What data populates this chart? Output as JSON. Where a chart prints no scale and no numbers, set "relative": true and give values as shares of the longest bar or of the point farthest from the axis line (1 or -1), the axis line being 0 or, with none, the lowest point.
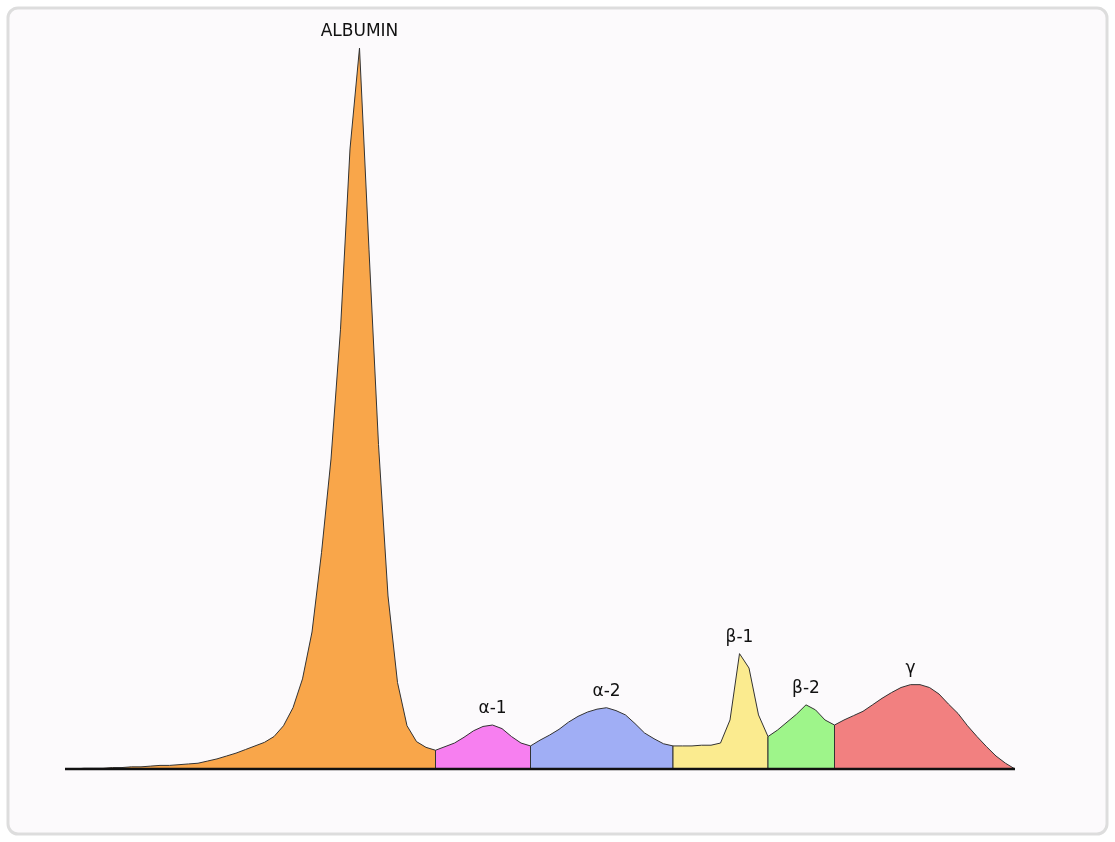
{
  "chart_data": {
    "type": "area",
    "relative": true,
    "categories": [
      null,
      null,
      null,
      null,
      null,
      null,
      null,
      null,
      null,
      null,
      null,
      null,
      null,
      null,
      null,
      null,
      null,
      null,
      null,
      null,
      null,
      null,
      null,
      null,
      null,
      null,
      null,
      null,
      null,
      null,
      null,
      null,
      null,
      null,
      null,
      null,
      null,
      null,
      null,
      null,
      null,
      null,
      null,
      null,
      null,
      null,
      null,
      null,
      null,
      null,
      null,
      null,
      null,
      null,
      null,
      null,
      null,
      null,
      null,
      null,
      null,
      null,
      null,
      null,
      null,
      null,
      null,
      null,
      null,
      null,
      null,
      null,
      null,
      null,
      null,
      null,
      null,
      null,
      null,
      null,
      null,
      null,
      null,
      null,
      null,
      null,
      null,
      null,
      null,
      null,
      null,
      null,
      null,
      null,
      null,
      null,
      null,
      null,
      null,
      null,
      null
    ],
    "series": [
      {
        "name": "ALBUMIN",
        "color": "#f9a64a",
        "values": [
          0,
          0,
          0.001,
          0.001,
          0.001,
          0.002,
          0.002,
          0.003,
          0.003,
          0.004,
          0.005,
          0.005,
          0.006,
          0.007,
          0.008,
          0.011,
          0.014,
          0.018,
          0.022,
          0.027,
          0.032,
          0.037,
          0.045,
          0.06,
          0.085,
          0.125,
          0.19,
          0.3,
          0.43,
          0.61,
          0.86,
          1,
          0.72,
          0.45,
          0.24,
          0.12,
          0.06,
          0.038,
          0.03,
          0.026,
          null,
          null,
          null,
          null,
          null,
          null,
          null,
          null,
          null,
          null,
          null,
          null,
          null,
          null,
          null,
          null,
          null,
          null,
          null,
          null,
          null,
          null,
          null,
          null,
          null,
          null,
          null,
          null,
          null,
          null,
          null,
          null,
          null,
          null,
          null,
          null,
          null,
          null,
          null,
          null,
          null,
          null,
          null,
          null,
          null,
          null,
          null,
          null,
          null,
          null,
          null,
          null,
          null,
          null,
          null,
          null,
          null,
          null,
          null,
          null,
          null
        ]
      },
      {
        "name": "α-1",
        "color": "#f77ff0",
        "values": [
          null,
          null,
          null,
          null,
          null,
          null,
          null,
          null,
          null,
          null,
          null,
          null,
          null,
          null,
          null,
          null,
          null,
          null,
          null,
          null,
          null,
          null,
          null,
          null,
          null,
          null,
          null,
          null,
          null,
          null,
          null,
          null,
          null,
          null,
          null,
          null,
          null,
          null,
          null,
          0.026,
          0.031,
          0.036,
          0.044,
          0.053,
          0.059,
          0.061,
          0.056,
          0.045,
          0.036,
          0.032,
          null,
          null,
          null,
          null,
          null,
          null,
          null,
          null,
          null,
          null,
          null,
          null,
          null,
          null,
          null,
          null,
          null,
          null,
          null,
          null,
          null,
          null,
          null,
          null,
          null,
          null,
          null,
          null,
          null,
          null,
          null,
          null,
          null,
          null,
          null,
          null,
          null,
          null,
          null,
          null,
          null,
          null,
          null,
          null,
          null,
          null,
          null,
          null,
          null,
          null,
          null
        ]
      },
      {
        "name": "α-2",
        "color": "#a0aef5",
        "values": [
          null,
          null,
          null,
          null,
          null,
          null,
          null,
          null,
          null,
          null,
          null,
          null,
          null,
          null,
          null,
          null,
          null,
          null,
          null,
          null,
          null,
          null,
          null,
          null,
          null,
          null,
          null,
          null,
          null,
          null,
          null,
          null,
          null,
          null,
          null,
          null,
          null,
          null,
          null,
          null,
          null,
          null,
          null,
          null,
          null,
          null,
          null,
          null,
          null,
          0.032,
          0.04,
          0.047,
          0.055,
          0.065,
          0.073,
          0.079,
          0.083,
          0.085,
          0.081,
          0.075,
          0.063,
          0.05,
          0.042,
          0.035,
          0.032,
          null,
          null,
          null,
          null,
          null,
          null,
          null,
          null,
          null,
          null,
          null,
          null,
          null,
          null,
          null,
          null,
          null,
          null,
          null,
          null,
          null,
          null,
          null,
          null,
          null,
          null,
          null,
          null,
          null,
          null,
          null,
          null,
          null,
          null,
          null,
          null
        ]
      },
      {
        "name": "β-1",
        "color": "#fbeb8f",
        "values": [
          null,
          null,
          null,
          null,
          null,
          null,
          null,
          null,
          null,
          null,
          null,
          null,
          null,
          null,
          null,
          null,
          null,
          null,
          null,
          null,
          null,
          null,
          null,
          null,
          null,
          null,
          null,
          null,
          null,
          null,
          null,
          null,
          null,
          null,
          null,
          null,
          null,
          null,
          null,
          null,
          null,
          null,
          null,
          null,
          null,
          null,
          null,
          null,
          null,
          null,
          null,
          null,
          null,
          null,
          null,
          null,
          null,
          null,
          null,
          null,
          null,
          null,
          null,
          null,
          0.032,
          0.032,
          0.032,
          0.033,
          0.033,
          0.036,
          0.068,
          0.16,
          0.14,
          0.075,
          0.045,
          null,
          null,
          null,
          null,
          null,
          null,
          null,
          null,
          null,
          null,
          null,
          null,
          null,
          null,
          null,
          null,
          null,
          null,
          null,
          null,
          null,
          null,
          null,
          null,
          null,
          null
        ]
      },
      {
        "name": "β-2",
        "color": "#9ef58a",
        "values": [
          null,
          null,
          null,
          null,
          null,
          null,
          null,
          null,
          null,
          null,
          null,
          null,
          null,
          null,
          null,
          null,
          null,
          null,
          null,
          null,
          null,
          null,
          null,
          null,
          null,
          null,
          null,
          null,
          null,
          null,
          null,
          null,
          null,
          null,
          null,
          null,
          null,
          null,
          null,
          null,
          null,
          null,
          null,
          null,
          null,
          null,
          null,
          null,
          null,
          null,
          null,
          null,
          null,
          null,
          null,
          null,
          null,
          null,
          null,
          null,
          null,
          null,
          null,
          null,
          null,
          null,
          null,
          null,
          null,
          null,
          null,
          null,
          null,
          null,
          0.045,
          0.054,
          0.065,
          0.076,
          0.089,
          0.082,
          0.068,
          0.061,
          null,
          null,
          null,
          null,
          null,
          null,
          null,
          null,
          null,
          null,
          null,
          null,
          null,
          null,
          null,
          null,
          null,
          null,
          null
        ]
      },
      {
        "name": "γ",
        "color": "#f28080",
        "values": [
          null,
          null,
          null,
          null,
          null,
          null,
          null,
          null,
          null,
          null,
          null,
          null,
          null,
          null,
          null,
          null,
          null,
          null,
          null,
          null,
          null,
          null,
          null,
          null,
          null,
          null,
          null,
          null,
          null,
          null,
          null,
          null,
          null,
          null,
          null,
          null,
          null,
          null,
          null,
          null,
          null,
          null,
          null,
          null,
          null,
          null,
          null,
          null,
          null,
          null,
          null,
          null,
          null,
          null,
          null,
          null,
          null,
          null,
          null,
          null,
          null,
          null,
          null,
          null,
          null,
          null,
          null,
          null,
          null,
          null,
          null,
          null,
          null,
          null,
          null,
          null,
          null,
          null,
          null,
          null,
          null,
          0.061,
          0.068,
          0.074,
          0.08,
          0.089,
          0.098,
          0.106,
          0.113,
          0.117,
          0.117,
          0.113,
          0.104,
          0.09,
          0.077,
          0.06,
          0.045,
          0.031,
          0.018,
          0.008,
          0
        ]
      }
    ]
  }
}
